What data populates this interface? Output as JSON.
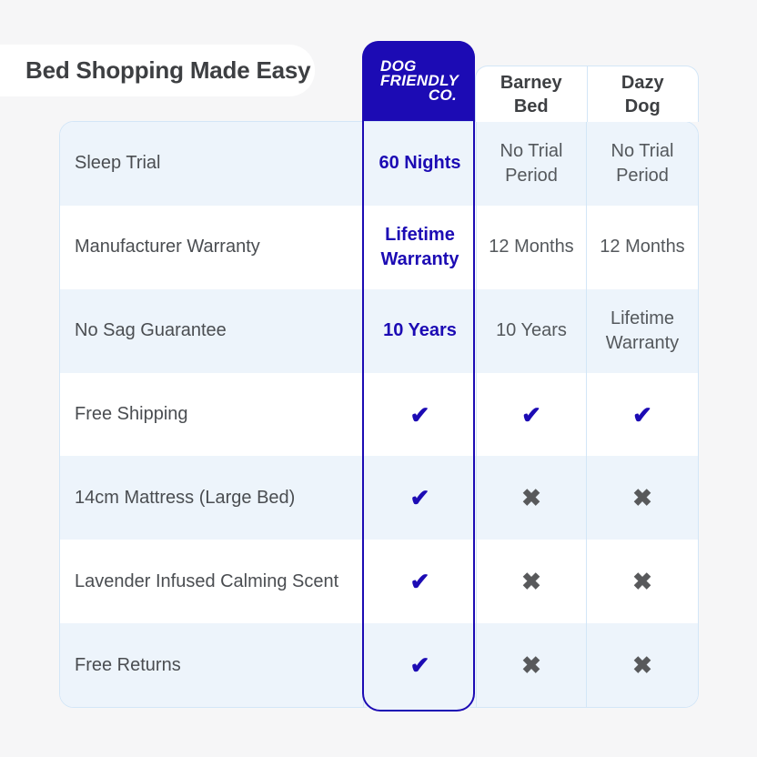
{
  "title": "Bed Shopping Made Easy",
  "brand": {
    "name": "Dog Friendly Co.",
    "logo_lines": [
      "DOG",
      "FRIENDLY",
      "CO."
    ]
  },
  "competitors": [
    "Barney\nBed",
    "Dazy\nDog"
  ],
  "table": {
    "rows": [
      {
        "feature": "Sleep Trial",
        "dfc": "60 Nights",
        "barney": "No Trial Period",
        "dazy": "No Trial Period"
      },
      {
        "feature": "Manufacturer Warranty",
        "dfc": "Lifetime Warranty",
        "barney": "12 Months",
        "dazy": "12 Months"
      },
      {
        "feature": "No Sag Guarantee",
        "dfc": "10 Years",
        "barney": "10 Years",
        "dazy": "Lifetime Warranty"
      },
      {
        "feature": "Free Shipping",
        "dfc": "check",
        "barney": "check",
        "dazy": "check"
      },
      {
        "feature": "14cm Mattress (Large Bed)",
        "dfc": "check",
        "barney": "cross",
        "dazy": "cross"
      },
      {
        "feature": "Lavender Infused Calming Scent",
        "dfc": "check",
        "barney": "cross",
        "dazy": "cross"
      },
      {
        "feature": "Free Returns",
        "dfc": "check",
        "barney": "cross",
        "dazy": "cross"
      }
    ]
  },
  "icons": {
    "check": "✔",
    "cross": "✖"
  },
  "colors": {
    "brand-blue": "#1c0bb4",
    "row-alt": "#edf4fb",
    "border": "#d3e6f7",
    "text-dark": "#3d3f42",
    "text-gray": "#54585c",
    "text-feature": "#4a4d51",
    "cross-gray": "#58595b",
    "page-bg": "#f6f6f7",
    "card-bg": "#ffffff"
  }
}
